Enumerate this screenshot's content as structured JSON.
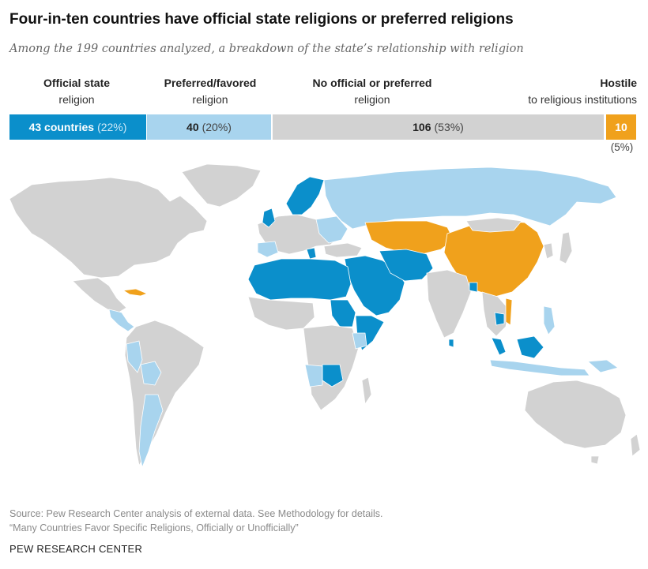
{
  "title": "Four-in-ten countries have official state religions or preferred religions",
  "subtitle": "Among the 199 countries analyzed, a breakdown of the state’s relationship with religion",
  "categories": {
    "official": {
      "label_bold": "Official state",
      "label_normal": "religion",
      "count_text": "43 countries",
      "pct_text": "(22%)",
      "count": 43,
      "percent": 22,
      "color": "#0b8fcb"
    },
    "preferred": {
      "label_bold": "Preferred/favored",
      "label_normal": "religion",
      "count_text": "40",
      "pct_text": "(20%)",
      "count": 40,
      "percent": 20,
      "color": "#a8d4ee"
    },
    "none": {
      "label_bold": "No official or preferred",
      "label_normal": "religion",
      "count_text": "106",
      "pct_text": "(53%)",
      "count": 106,
      "percent": 53,
      "color": "#d2d2d2"
    },
    "hostile": {
      "label_bold": "Hostile",
      "label_normal": "to religious institutions",
      "count_text": "10",
      "pct_text": "(5%)",
      "count": 10,
      "percent": 5,
      "color": "#f0a11c"
    }
  },
  "footer": {
    "source_line1": "Source: Pew Research Center analysis of external data. See Methodology for details.",
    "source_line2": "“Many Countries Favor Specific Religions, Officially or Unofficially”",
    "brand": "PEW RESEARCH CENTER"
  }
}
